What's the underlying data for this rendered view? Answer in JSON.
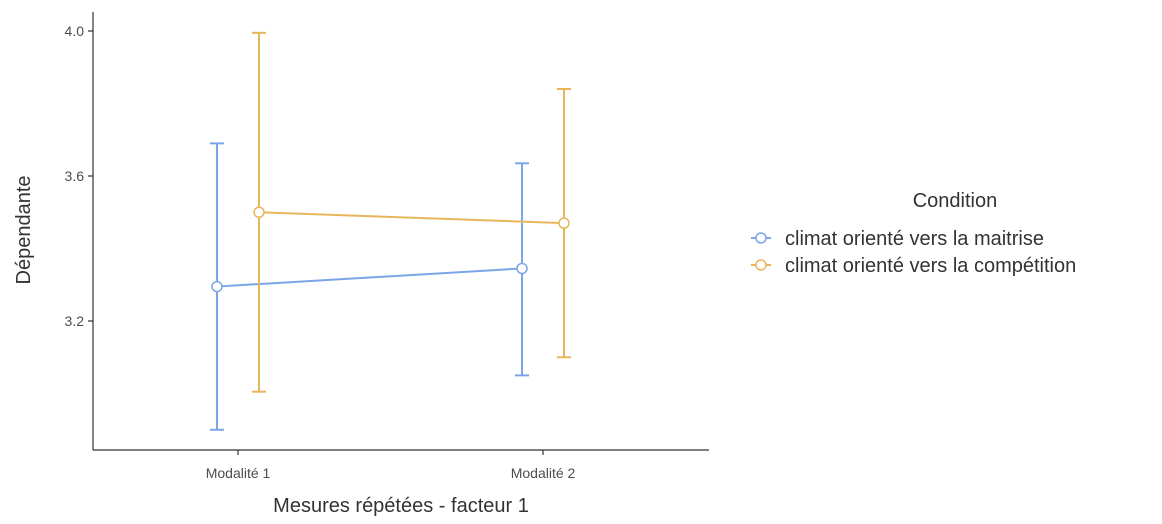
{
  "chart_data": {
    "type": "line",
    "xlabel": "Mesures répétées - facteur 1",
    "ylabel": "Dépendante",
    "categories": [
      "Modalité 1",
      "Modalité 2"
    ],
    "ylim": [
      2.9,
      4.05
    ],
    "yticks": [
      3.2,
      3.6,
      4.0
    ],
    "ytick_labels": [
      "3.2",
      "3.6",
      "4.0"
    ],
    "grid": false,
    "legend": {
      "title": "Condition",
      "placement": "right"
    },
    "series": [
      {
        "name": "climat orienté vers la maitrise",
        "color": "#7aa6e8",
        "values": [
          3.295,
          3.345
        ],
        "lower": [
          2.9,
          3.05
        ],
        "upper": [
          3.69,
          3.635
        ]
      },
      {
        "name": "climat orienté vers la compétition",
        "color": "#e8b65a",
        "values": [
          3.5,
          3.47
        ],
        "lower": [
          3.005,
          3.1
        ],
        "upper": [
          3.995,
          3.84
        ]
      }
    ]
  }
}
